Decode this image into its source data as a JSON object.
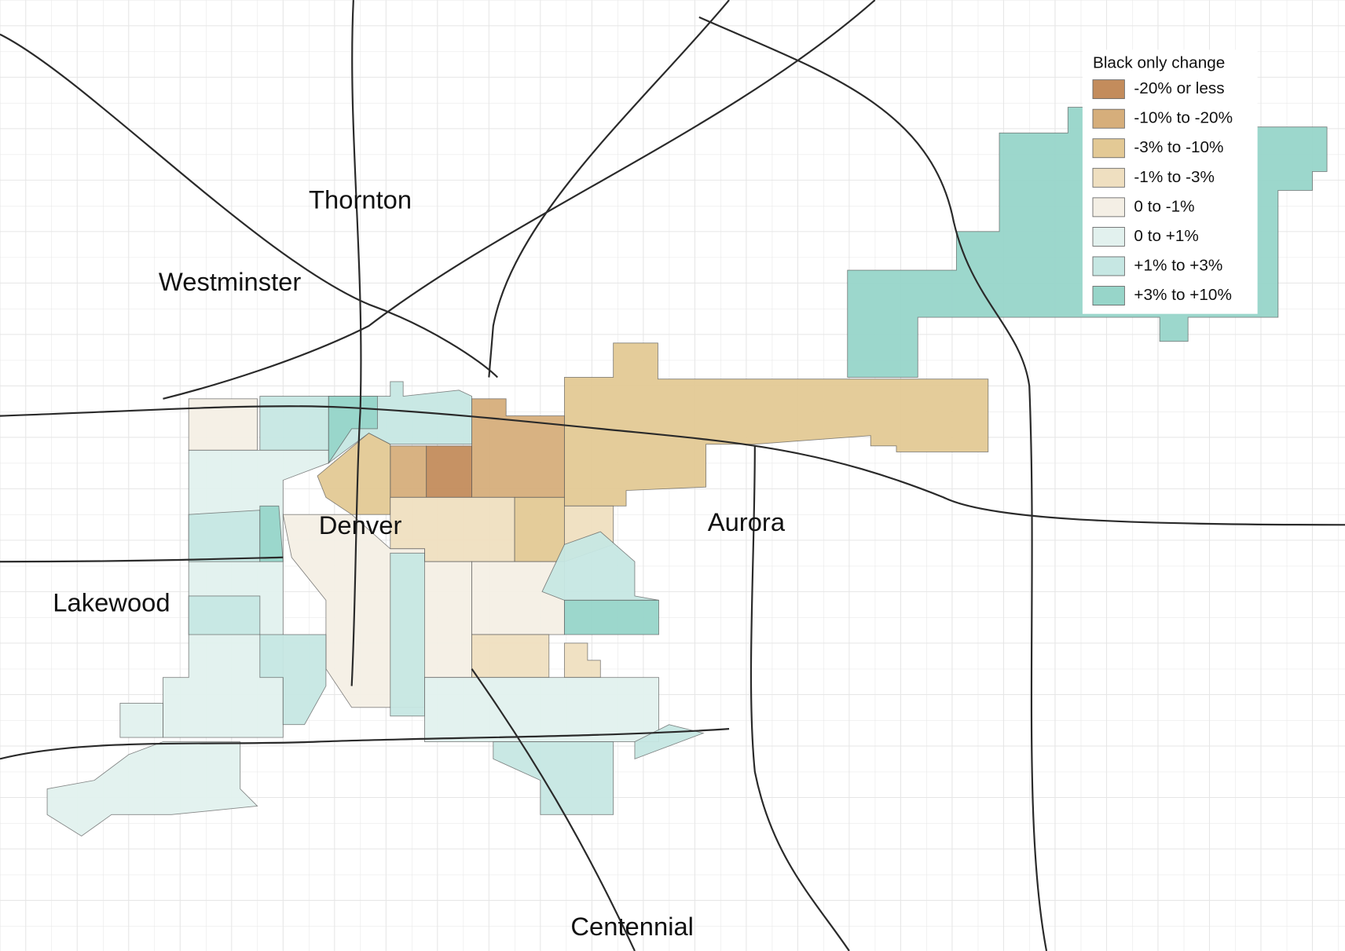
{
  "legend": {
    "title": "Black only change",
    "items": [
      {
        "label": "-20% or less",
        "color": "#c38c5c"
      },
      {
        "label": "-10% to -20%",
        "color": "#d6ae7b"
      },
      {
        "label": "-3% to -10%",
        "color": "#e3c995"
      },
      {
        "label": "-1% to -3%",
        "color": "#efdfc0"
      },
      {
        "label": "0 to -1%",
        "color": "#f4efe5"
      },
      {
        "label": "0 to +1%",
        "color": "#e2f1ee"
      },
      {
        "label": "+1% to +3%",
        "color": "#c6e7e3"
      },
      {
        "label": "+3% to +10%",
        "color": "#97d5c9"
      }
    ]
  },
  "places": [
    "Thornton",
    "Westminster",
    "Denver",
    "Aurora",
    "Lakewood",
    "Centennial"
  ]
}
